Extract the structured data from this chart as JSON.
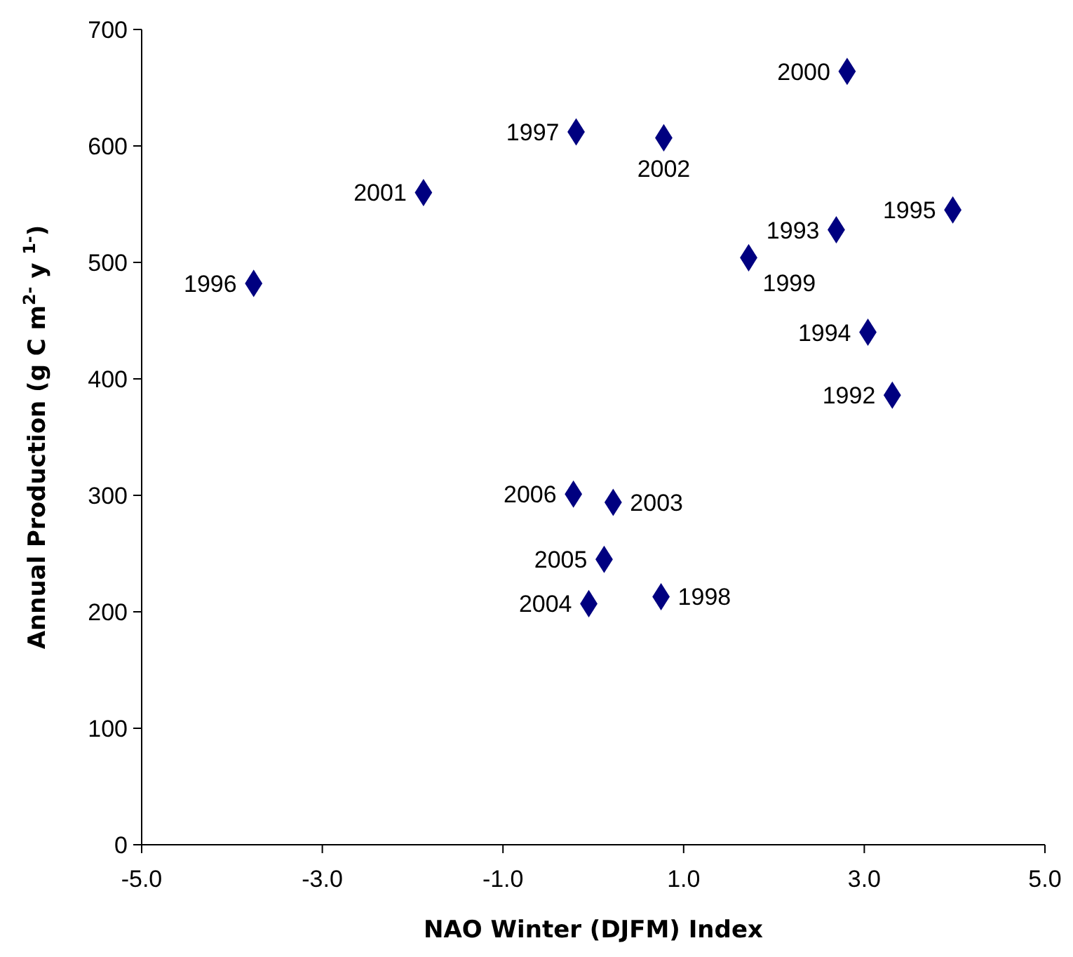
{
  "chart_data": {
    "type": "scatter",
    "xlabel": "NAO Winter (DJFM) Index",
    "ylabel": "Annual Production (g C m$^{2-}$ y $^{1-}$)",
    "x": [
      2.81,
      -0.19,
      0.78,
      -1.88,
      -3.76,
      2.69,
      3.98,
      1.72,
      3.04,
      3.31,
      -0.22,
      0.22,
      0.12,
      -0.05,
      0.75
    ],
    "values": [
      664,
      612,
      607,
      560,
      482,
      528,
      545,
      504,
      440,
      386,
      301,
      294,
      245,
      207,
      213
    ],
    "annotations": [
      {
        "text": "2000",
        "x": 2.81,
        "y": 664
      },
      {
        "text": "1997",
        "x": -0.19,
        "y": 612
      },
      {
        "text": "2002",
        "x": 0.78,
        "y": 607
      },
      {
        "text": "2001",
        "x": -1.88,
        "y": 560
      },
      {
        "text": "1996",
        "x": -3.76,
        "y": 482
      },
      {
        "text": "1993",
        "x": 2.69,
        "y": 528
      },
      {
        "text": "1995",
        "x": 3.98,
        "y": 545
      },
      {
        "text": "1999",
        "x": 1.72,
        "y": 504
      },
      {
        "text": "1994",
        "x": 3.04,
        "y": 440
      },
      {
        "text": "1992",
        "x": 3.31,
        "y": 386
      },
      {
        "text": "2006",
        "x": -0.22,
        "y": 301
      },
      {
        "text": "2003",
        "x": 0.22,
        "y": 294
      },
      {
        "text": "2005",
        "x": 0.12,
        "y": 245
      },
      {
        "text": "2004",
        "x": -0.05,
        "y": 207
      },
      {
        "text": "1998",
        "x": 0.75,
        "y": 213
      }
    ],
    "color": "#000080",
    "marker": "diamond",
    "grid": false,
    "xlim": [
      -5,
      5
    ],
    "xticks": [
      {
        "value": -5,
        "label": "-5.0"
      },
      {
        "value": -3,
        "label": "-3.0"
      },
      {
        "value": -1,
        "label": "-1.0"
      },
      {
        "value": 1,
        "label": "1.0"
      },
      {
        "value": 3,
        "label": "3.0"
      },
      {
        "value": 5,
        "label": "5.0"
      }
    ],
    "ylim": [
      0,
      700
    ],
    "yticks": [
      0,
      100,
      200,
      300,
      400,
      500,
      600,
      700
    ]
  }
}
